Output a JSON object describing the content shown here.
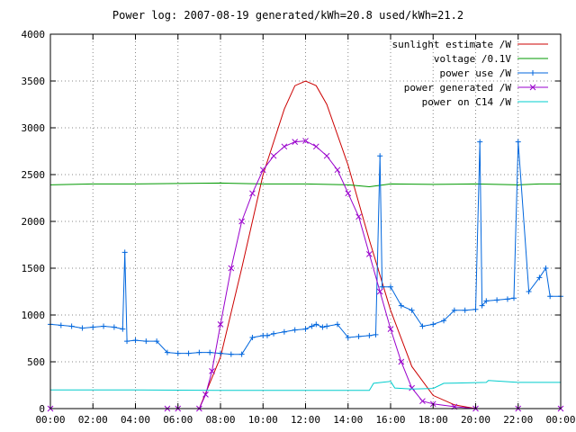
{
  "chart_data": {
    "type": "line",
    "title": "Power log: 2007-08-19 generated/kWh=20.8 used/kWh=21.2",
    "xlim": [
      0,
      24
    ],
    "ylim": [
      0,
      4000
    ],
    "grid": true,
    "legend_position": "top-right",
    "x_ticks": [
      "00:00",
      "02:00",
      "04:00",
      "06:00",
      "08:00",
      "10:00",
      "12:00",
      "14:00",
      "16:00",
      "18:00",
      "20:00",
      "22:00",
      "00:00"
    ],
    "y_ticks": [
      "0",
      "500",
      "1000",
      "1500",
      "2000",
      "2500",
      "3000",
      "3500",
      "4000"
    ],
    "series": [
      {
        "name": "sunlight estimate /W",
        "color": "#cc0000",
        "x": [
          7.0,
          8.0,
          9.0,
          10.0,
          11.0,
          11.5,
          12.0,
          12.5,
          13.0,
          14.0,
          15.0,
          16.0,
          17.0,
          18.0,
          19.0,
          20.0
        ],
        "y": [
          0,
          550,
          1500,
          2500,
          3200,
          3450,
          3500,
          3450,
          3250,
          2600,
          1800,
          1050,
          450,
          140,
          40,
          0
        ]
      },
      {
        "name": "voltage /0.1V",
        "color": "#009900",
        "x": [
          0,
          2,
          4,
          6,
          8,
          10,
          12,
          14,
          15,
          16,
          18,
          20,
          22,
          23,
          24
        ],
        "y": [
          2390,
          2400,
          2400,
          2405,
          2410,
          2400,
          2400,
          2390,
          2370,
          2400,
          2395,
          2400,
          2390,
          2400,
          2400
        ]
      },
      {
        "name": "power use /W",
        "color": "#0066dd",
        "x": [
          0,
          0.5,
          1,
          1.5,
          2,
          2.5,
          3,
          3.4,
          3.5,
          3.6,
          4,
          4.5,
          5,
          5.5,
          6,
          6.5,
          7,
          7.5,
          8,
          8.5,
          9,
          9.5,
          10,
          10.2,
          10.5,
          11,
          11.5,
          12,
          12.3,
          12.5,
          12.8,
          13,
          13.5,
          14,
          14.5,
          15,
          15.3,
          15.5,
          15.6,
          16,
          16.5,
          17,
          17.5,
          18,
          18.5,
          19,
          19.5,
          20,
          20.2,
          20.3,
          20.5,
          21,
          21.5,
          21.8,
          22,
          22.5,
          23,
          23.3,
          23.5,
          24
        ],
        "y": [
          900,
          890,
          880,
          860,
          870,
          880,
          870,
          850,
          1670,
          720,
          730,
          720,
          720,
          600,
          590,
          590,
          600,
          600,
          590,
          580,
          580,
          760,
          780,
          780,
          800,
          820,
          840,
          850,
          880,
          900,
          870,
          880,
          900,
          760,
          770,
          780,
          790,
          2700,
          1300,
          1300,
          1100,
          1050,
          880,
          900,
          940,
          1050,
          1050,
          1060,
          2850,
          1100,
          1150,
          1160,
          1170,
          1180,
          2850,
          1250,
          1400,
          1500,
          1200,
          1200
        ]
      },
      {
        "name": "power generated /W",
        "color": "#9900cc",
        "x": [
          0,
          5.5,
          6,
          7,
          7.3,
          7.6,
          8,
          8.5,
          9,
          9.5,
          10,
          10.5,
          11,
          11.5,
          12,
          12.5,
          13,
          13.5,
          14,
          14.5,
          15,
          15.5,
          16,
          16.5,
          17,
          17.5,
          18,
          19,
          20,
          22,
          24
        ],
        "y": [
          0,
          0,
          0,
          0,
          150,
          400,
          900,
          1500,
          2000,
          2300,
          2550,
          2700,
          2800,
          2850,
          2860,
          2800,
          2700,
          2550,
          2300,
          2050,
          1650,
          1250,
          850,
          500,
          220,
          80,
          50,
          20,
          0,
          0,
          0
        ]
      },
      {
        "name": "power on C14 /W",
        "color": "#00cccc",
        "x": [
          0,
          4,
          8,
          12,
          15,
          15.2,
          16,
          16.2,
          17,
          18,
          18.5,
          20.5,
          20.6,
          22,
          24
        ],
        "y": [
          200,
          200,
          195,
          195,
          195,
          270,
          290,
          220,
          210,
          215,
          270,
          280,
          300,
          280,
          280
        ]
      }
    ]
  }
}
